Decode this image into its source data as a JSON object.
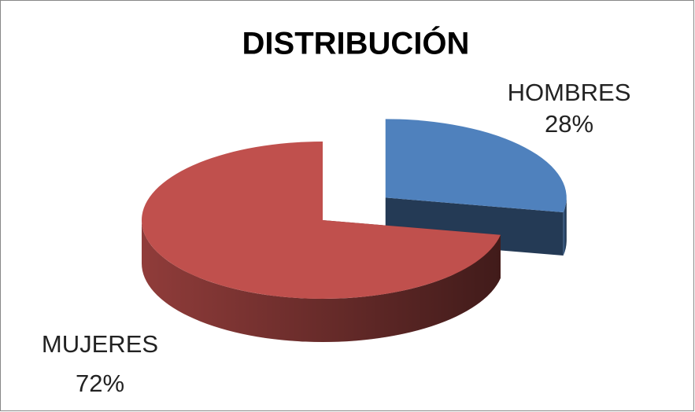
{
  "chart_data": {
    "type": "pie",
    "title": "DISTRIBUCIÓN",
    "categories": [
      "HOMBRES",
      "MUJERES"
    ],
    "values": [
      28,
      72
    ],
    "value_labels": [
      "28%",
      "72%"
    ],
    "colors": [
      "#4f81bd",
      "#c0504d"
    ]
  }
}
